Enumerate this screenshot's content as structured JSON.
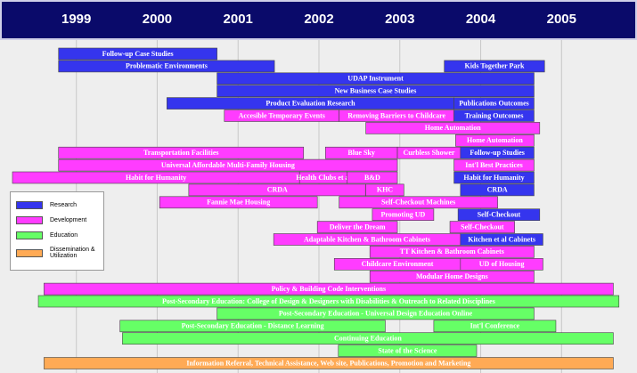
{
  "chart_data": {
    "type": "gantt",
    "xlim": [
      1998.1,
      2005.9
    ],
    "xticks": [
      1999,
      2000,
      2001,
      2002,
      2003,
      2004,
      2005
    ],
    "grid": true,
    "series": [
      {
        "name": "Research",
        "color": "#3535ee"
      },
      {
        "name": "Development",
        "color": "#ff3cff"
      },
      {
        "name": "Education",
        "color": "#66ff66"
      },
      {
        "name": "Dissemination & Utilization",
        "color": "#ffaa55"
      }
    ],
    "rows": [
      [
        {
          "label": "Follow-up Case Studies",
          "series": "Research",
          "start": 1998.78,
          "end": 2000.74
        }
      ],
      [
        {
          "label": "Problematic Environments",
          "series": "Research",
          "start": 1998.78,
          "end": 2001.45
        },
        {
          "label": "Kids Together Park",
          "series": "Research",
          "start": 2003.55,
          "end": 2004.79
        }
      ],
      [
        {
          "label": "UDAP Instrument",
          "series": "Research",
          "start": 2000.74,
          "end": 2004.66
        }
      ],
      [
        {
          "label": "New Business Case Studies",
          "series": "Research",
          "start": 2000.74,
          "end": 2004.66
        }
      ],
      [
        {
          "label": "Product Evaluation Research",
          "series": "Research",
          "start": 2000.12,
          "end": 2003.67
        },
        {
          "label": "Publications Outcomes",
          "series": "Research",
          "start": 2003.67,
          "end": 2004.66
        }
      ],
      [
        {
          "label": "Accesible Temporary Events",
          "series": "Development",
          "start": 2000.83,
          "end": 2002.25
        },
        {
          "label": "Removing Barriers to Childcare",
          "series": "Development",
          "start": 2002.25,
          "end": 2003.67
        },
        {
          "label": "Training Outcomes",
          "series": "Research",
          "start": 2003.67,
          "end": 2004.66
        }
      ],
      [
        {
          "label": "Home Automation",
          "series": "Development",
          "start": 2002.58,
          "end": 2004.73
        }
      ],
      [
        {
          "label": "Home Automation",
          "series": "Development",
          "start": 2003.69,
          "end": 2004.66
        }
      ],
      [
        {
          "label": "Transportation Facilities",
          "series": "Development",
          "start": 1998.78,
          "end": 2001.81
        },
        {
          "label": "Blue Sky",
          "series": "Development",
          "start": 2002.08,
          "end": 2002.97
        },
        {
          "label": "Curbless Shower",
          "series": "Development",
          "start": 2002.97,
          "end": 2003.75
        },
        {
          "label": "Follow-up Studies",
          "series": "Research",
          "start": 2003.75,
          "end": 2004.66
        }
      ],
      [
        {
          "label": "Universal Affordable Multi-Family Housing",
          "series": "Development",
          "start": 1998.78,
          "end": 2002.97
        },
        {
          "label": "Int'l Best Practices",
          "series": "Development",
          "start": 2003.67,
          "end": 2004.66
        }
      ],
      [
        {
          "label": "Habit for Humanity",
          "series": "Development",
          "start": 1998.21,
          "end": 2001.76
        },
        {
          "label": "Health Clubs et al",
          "series": "Development",
          "start": 2001.76,
          "end": 2002.35
        },
        {
          "label": "B&D",
          "series": "Development",
          "start": 2002.35,
          "end": 2002.97
        },
        {
          "label": "Habit for Humanity",
          "series": "Research",
          "start": 2003.67,
          "end": 2004.66
        }
      ],
      [
        {
          "label": "CRDA",
          "series": "Development",
          "start": 2000.39,
          "end": 2002.58
        },
        {
          "label": "KHC",
          "series": "Development",
          "start": 2002.58,
          "end": 2003.05
        },
        {
          "label": "CRDA",
          "series": "Research",
          "start": 2003.75,
          "end": 2004.66
        }
      ],
      [
        {
          "label": "Fannie Mae Housing",
          "series": "Development",
          "start": 2000.03,
          "end": 2001.98
        },
        {
          "label": "Self-Checkout Machines",
          "series": "Development",
          "start": 2002.25,
          "end": 2004.21
        }
      ],
      [
        {
          "label": "Promoting UD",
          "series": "Development",
          "start": 2002.66,
          "end": 2003.42
        },
        {
          "label": "Self-Checkout",
          "series": "Research",
          "start": 2003.72,
          "end": 2004.73
        }
      ],
      [
        {
          "label": "Deliver the Dream",
          "series": "Development",
          "start": 2001.98,
          "end": 2002.97
        },
        {
          "label": "Self-Checkout",
          "series": "Development",
          "start": 2003.62,
          "end": 2004.42
        }
      ],
      [
        {
          "label": "Adaptable Kitchen & Bathroom Cabinets",
          "series": "Development",
          "start": 2001.44,
          "end": 2003.75
        },
        {
          "label": "Kitchen et al Cabinets",
          "series": "Research",
          "start": 2003.75,
          "end": 2004.77
        }
      ],
      [
        {
          "label": "TT Kitchen & Bathroom Cabinets",
          "series": "Development",
          "start": 2002.63,
          "end": 2004.66
        }
      ],
      [
        {
          "label": "Childcare Environment",
          "series": "Development",
          "start": 2002.19,
          "end": 2003.75
        },
        {
          "label": "UD of Housing",
          "series": "Development",
          "start": 2003.75,
          "end": 2004.77
        }
      ],
      [
        {
          "label": "Modular Home Designs",
          "series": "Development",
          "start": 2002.63,
          "end": 2004.66
        }
      ],
      [
        {
          "label": "Policy & Building Code Interventions",
          "series": "Development",
          "start": 1998.6,
          "end": 2005.64
        }
      ],
      [
        {
          "label": "Post-Secondary Education: College of Design & Designers with Disabilities & Outreach to Related Disciplines",
          "series": "Education",
          "start": 1998.53,
          "end": 2005.71
        }
      ],
      [
        {
          "label": "Post-Secondary Education - Universal Design Education Online",
          "series": "Education",
          "start": 2000.74,
          "end": 2004.66
        }
      ],
      [
        {
          "label": "Post-Secondary Education - Distance Learning",
          "series": "Education",
          "start": 1999.54,
          "end": 2002.82
        },
        {
          "label": "Int'l Conference",
          "series": "Education",
          "start": 2003.42,
          "end": 2004.93
        }
      ],
      [
        {
          "label": "Continuing Education",
          "series": "Education",
          "start": 1999.57,
          "end": 2005.64
        }
      ],
      [
        {
          "label": "State of the Science",
          "series": "Education",
          "start": 2002.24,
          "end": 2003.95
        }
      ],
      [
        {
          "label": "Information Referral, Technical Assistance, Web site, Publications, Promotion and Marketing",
          "series": "Dissemination & Utilization",
          "start": 1998.6,
          "end": 2005.64
        }
      ]
    ]
  }
}
